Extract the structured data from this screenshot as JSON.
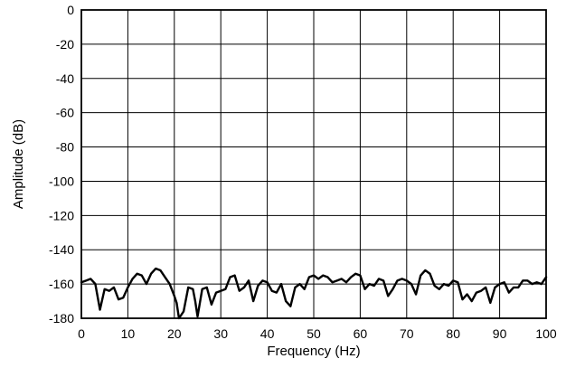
{
  "chart_data": {
    "type": "line",
    "title": "",
    "xlabel": "Frequency (Hz)",
    "ylabel": "Amplitude (dB)",
    "xlim": [
      0,
      100
    ],
    "ylim": [
      -180,
      0
    ],
    "xticks": [
      0,
      10,
      20,
      30,
      40,
      50,
      60,
      70,
      80,
      90,
      100
    ],
    "yticks": [
      0,
      -20,
      -40,
      -60,
      -80,
      -100,
      -120,
      -140,
      -160,
      -180
    ],
    "grid": true,
    "legend": "none",
    "line_color": "#000000",
    "series": [
      {
        "x": [
          0,
          1,
          2,
          3,
          4,
          5,
          6,
          7,
          8,
          9,
          10,
          11,
          12,
          13,
          14,
          15,
          16,
          17,
          18,
          19,
          20,
          20.5,
          21,
          22,
          23,
          24,
          24.5,
          25,
          26,
          27,
          28,
          29,
          30,
          31,
          32,
          33,
          34,
          35,
          36,
          37,
          38,
          39,
          40,
          41,
          42,
          43,
          44,
          45,
          46,
          47,
          48,
          49,
          50,
          51,
          52,
          53,
          54,
          55,
          56,
          57,
          58,
          59,
          60,
          61,
          62,
          63,
          64,
          65,
          66,
          67,
          68,
          69,
          70,
          71,
          72,
          73,
          74,
          75,
          76,
          77,
          78,
          79,
          80,
          81,
          82,
          83,
          84,
          85,
          86,
          87,
          88,
          89,
          90,
          91,
          92,
          93,
          94,
          95,
          96,
          97,
          98,
          99,
          100
        ],
        "y": [
          -159,
          -158,
          -157,
          -160,
          -175,
          -163,
          -164,
          -162,
          -169,
          -168,
          -162,
          -157,
          -154,
          -155,
          -160,
          -154,
          -151,
          -152,
          -156,
          -160,
          -167,
          -171,
          -180,
          -176,
          -162,
          -163,
          -170,
          -179,
          -163,
          -162,
          -172,
          -165,
          -164,
          -163,
          -156,
          -155,
          -164,
          -162,
          -158,
          -170,
          -161,
          -158,
          -159,
          -164,
          -165,
          -160,
          -170,
          -173,
          -162,
          -160,
          -163,
          -156,
          -155,
          -157,
          -155,
          -156,
          -159,
          -158,
          -157,
          -159,
          -156,
          -154,
          -155,
          -163,
          -160,
          -161,
          -157,
          -158,
          -167,
          -163,
          -158,
          -157,
          -158,
          -160,
          -166,
          -155,
          -152,
          -154,
          -161,
          -163,
          -160,
          -161,
          -158,
          -159,
          -169,
          -166,
          -170,
          -165,
          -164,
          -162,
          -171,
          -162,
          -160,
          -159,
          -165,
          -162,
          -162,
          -158,
          -158,
          -160,
          -159,
          -160,
          -156
        ]
      }
    ]
  }
}
